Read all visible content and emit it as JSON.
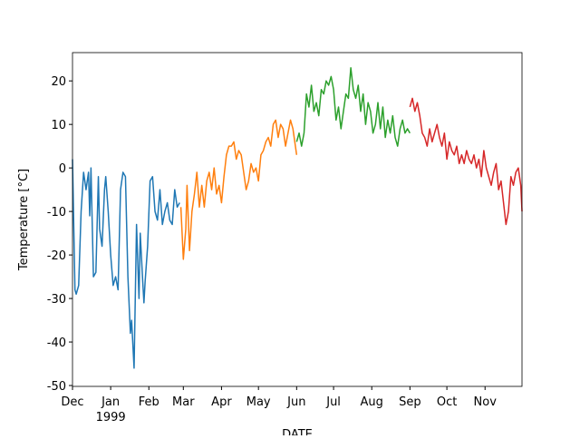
{
  "chart_data": {
    "type": "line",
    "y_label": "Temperature [°C]",
    "x_label": "DATE",
    "xlim": [
      0,
      365
    ],
    "ylim": [
      -50.2,
      26.5
    ],
    "xticks": [
      {
        "value": 0,
        "label": "Dec"
      },
      {
        "value": 31,
        "label": "Jan"
      },
      {
        "value": 62,
        "label": "Feb"
      },
      {
        "value": 90,
        "label": "Mar"
      },
      {
        "value": 121,
        "label": "Apr"
      },
      {
        "value": 151,
        "label": "May"
      },
      {
        "value": 182,
        "label": "Jun"
      },
      {
        "value": 212,
        "label": "Jul"
      },
      {
        "value": 243,
        "label": "Aug"
      },
      {
        "value": 274,
        "label": "Sep"
      },
      {
        "value": 304,
        "label": "Oct"
      },
      {
        "value": 335,
        "label": "Nov"
      }
    ],
    "x_year_label": {
      "value": 31,
      "label": "1999"
    },
    "yticks": [
      -50,
      -40,
      -30,
      -20,
      -10,
      0,
      10,
      20
    ],
    "series": [
      {
        "color": "#1f77b4",
        "x": [
          0,
          2,
          3,
          5,
          7,
          9,
          11,
          13,
          14,
          15,
          17,
          19,
          21,
          22,
          24,
          26,
          27,
          29,
          31,
          33,
          35,
          37,
          39,
          41,
          43,
          45,
          47,
          48,
          50,
          52,
          54,
          55,
          57,
          58,
          59,
          61,
          63,
          65,
          67,
          69,
          71,
          73,
          75,
          77,
          79,
          81,
          83,
          85,
          87
        ],
        "values": [
          2,
          -28,
          -29,
          -27,
          -10,
          -1,
          -5,
          -1,
          -11,
          0,
          -25,
          -24,
          -2,
          -14,
          -18,
          -5,
          -2,
          -10,
          -20,
          -27,
          -25,
          -28,
          -5,
          -1,
          -2,
          -25,
          -38,
          -35,
          -46,
          -13,
          -30,
          -15,
          -26,
          -31,
          -26,
          -18,
          -3,
          -2,
          -10,
          -12,
          -5,
          -13,
          -10,
          -8,
          -12,
          -13,
          -5,
          -9,
          -8
        ]
      },
      {
        "color": "#ff7f0e",
        "x": [
          88,
          90,
          92,
          93,
          95,
          97,
          99,
          101,
          103,
          105,
          107,
          109,
          111,
          113,
          115,
          117,
          119,
          121,
          123,
          125,
          127,
          129,
          131,
          133,
          135,
          137,
          139,
          141,
          143,
          145,
          147,
          149,
          151,
          153,
          155,
          157,
          159,
          161,
          163,
          165,
          167,
          169,
          171,
          173,
          175,
          177,
          179,
          181,
          182
        ],
        "values": [
          -9,
          -21,
          -14,
          -4,
          -19,
          -10,
          -6,
          -1,
          -9,
          -4,
          -9,
          -3,
          -1,
          -5,
          0,
          -6,
          -4,
          -8,
          -2,
          3,
          5,
          5,
          6,
          2,
          4,
          3,
          -1,
          -5,
          -3,
          1,
          -1,
          0,
          -3,
          3,
          4,
          6,
          7,
          5,
          10,
          11,
          7,
          10,
          9,
          5,
          8,
          11,
          9,
          5,
          3
        ]
      },
      {
        "color": "#2ca02c",
        "x": [
          182,
          184,
          186,
          188,
          190,
          192,
          194,
          196,
          198,
          200,
          202,
          204,
          206,
          208,
          210,
          212,
          214,
          216,
          218,
          220,
          222,
          224,
          226,
          228,
          230,
          232,
          234,
          236,
          238,
          240,
          242,
          244,
          246,
          248,
          250,
          252,
          254,
          256,
          258,
          260,
          262,
          264,
          266,
          268,
          270,
          272,
          274
        ],
        "values": [
          6,
          8,
          5,
          8,
          17,
          14,
          19,
          13,
          15,
          12,
          18,
          17,
          20,
          19,
          21,
          18,
          11,
          14,
          9,
          13,
          17,
          16,
          23,
          18,
          16,
          19,
          13,
          17,
          10,
          15,
          13,
          8,
          10,
          15,
          9,
          14,
          7,
          11,
          8,
          12,
          7,
          5,
          9,
          11,
          8,
          9,
          8
        ]
      },
      {
        "color": "#d62728",
        "x": [
          274,
          276,
          278,
          280,
          282,
          284,
          286,
          288,
          290,
          292,
          294,
          296,
          298,
          300,
          302,
          304,
          306,
          308,
          310,
          312,
          314,
          316,
          318,
          320,
          322,
          324,
          326,
          328,
          330,
          332,
          334,
          336,
          338,
          340,
          342,
          344,
          346,
          348,
          350,
          352,
          354,
          356,
          358,
          360,
          362,
          364,
          365
        ],
        "values": [
          14,
          16,
          13,
          15,
          12,
          8,
          7,
          5,
          9,
          6,
          8,
          10,
          7,
          5,
          8,
          2,
          6,
          4,
          3,
          5,
          1,
          3,
          1,
          4,
          2,
          1,
          3,
          0,
          2,
          -2,
          4,
          0,
          -2,
          -4,
          -1,
          1,
          -5,
          -3,
          -8,
          -13,
          -10,
          -2,
          -4,
          -1,
          0,
          -4,
          -10
        ]
      }
    ]
  }
}
